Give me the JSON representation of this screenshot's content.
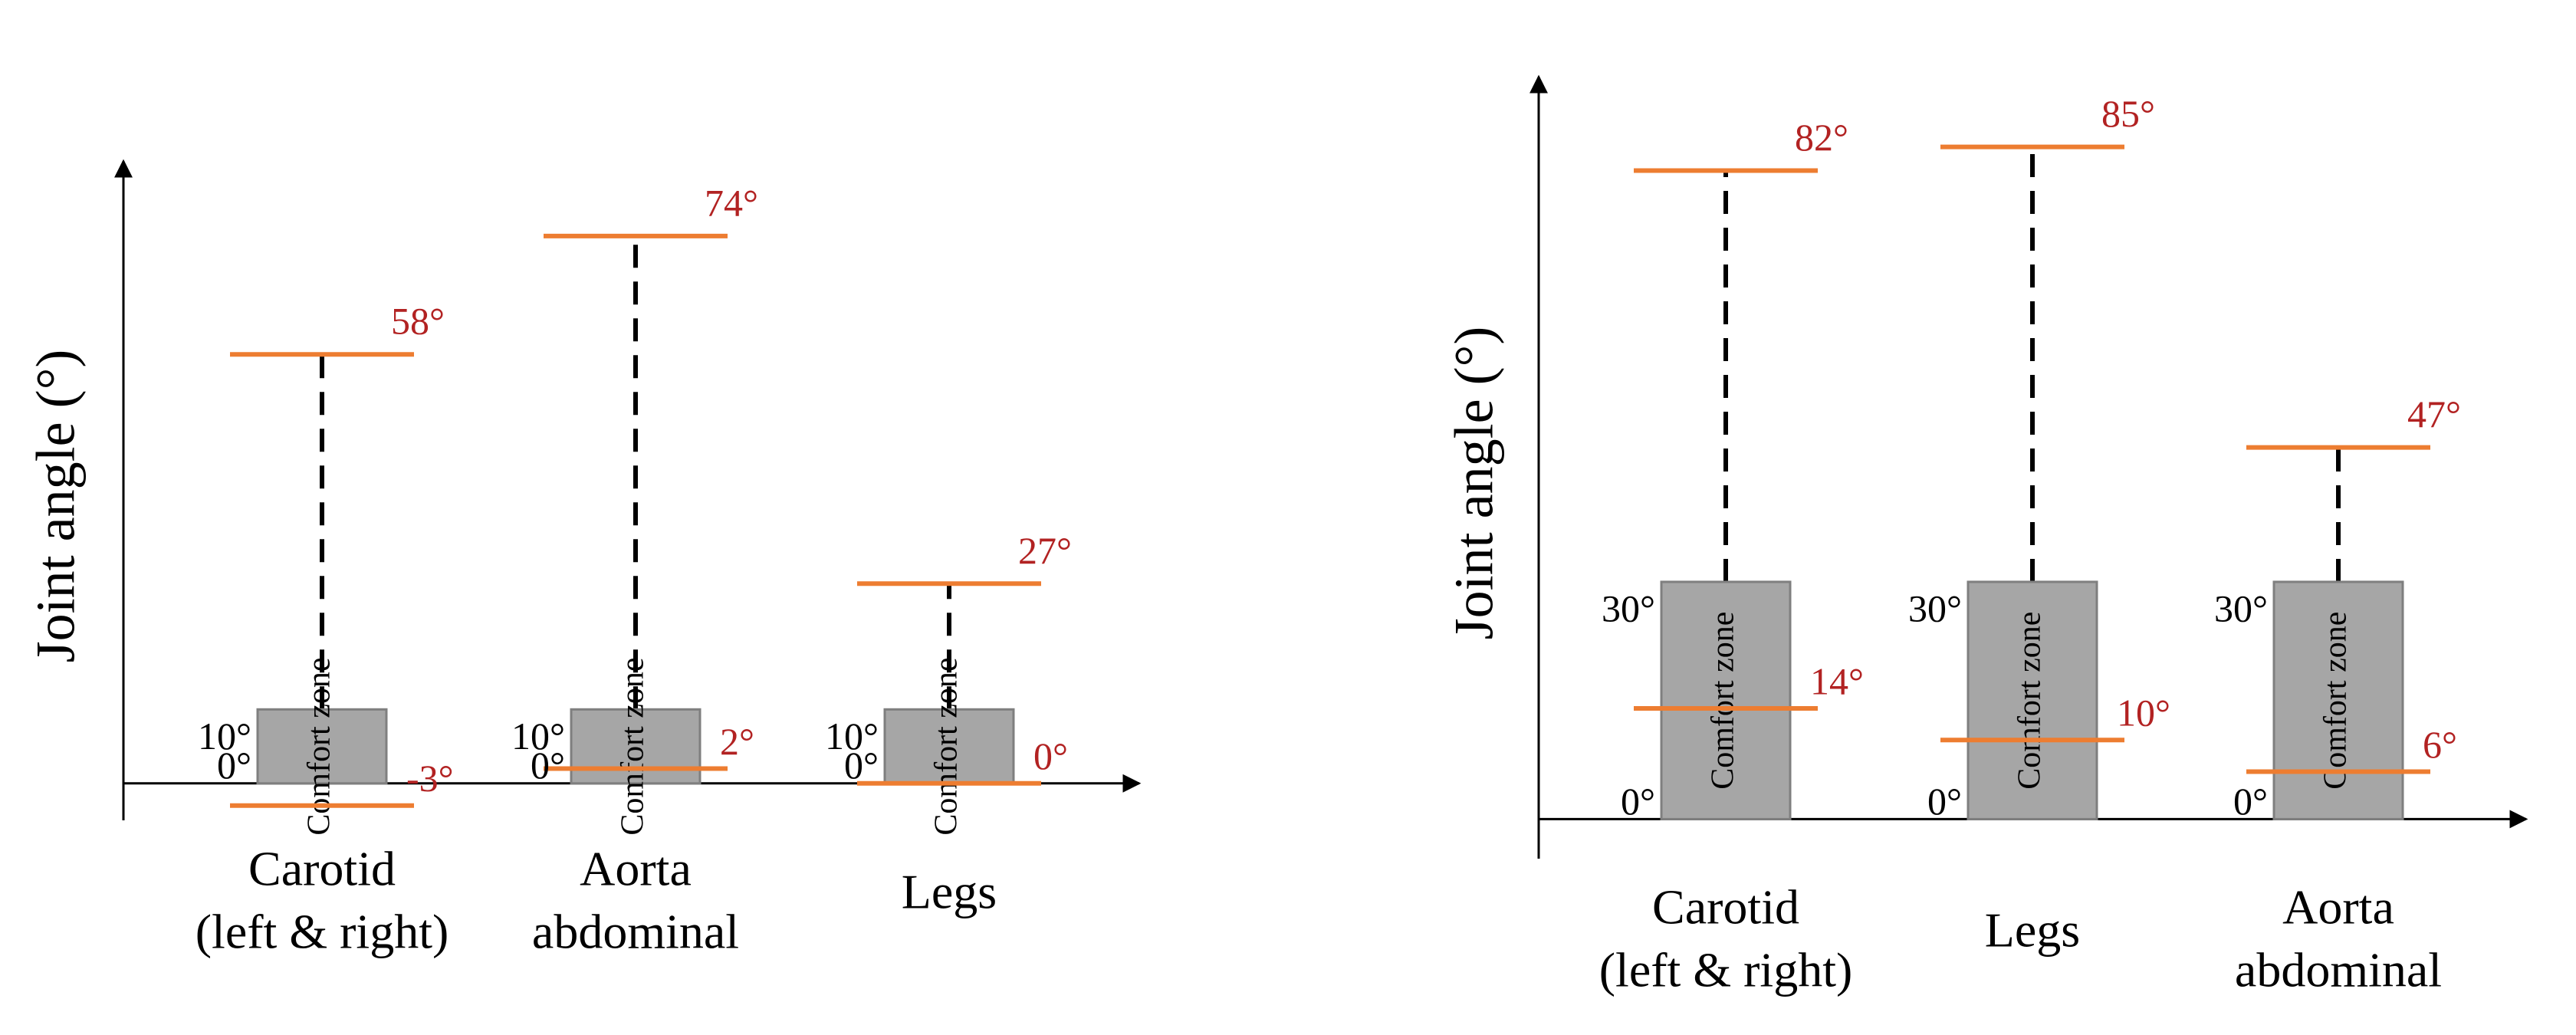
{
  "chart_data": [
    {
      "type": "range",
      "ylabel": "Joint angle (°)",
      "zone_label": "Comfort zone",
      "categories": [
        [
          "Carotid",
          "(left & right)"
        ],
        [
          "Aorta",
          "abdominal"
        ],
        [
          "Legs"
        ]
      ],
      "comfort_low": [
        0,
        0,
        0
      ],
      "comfort_low_labels": [
        "0°",
        "0°",
        "0°"
      ],
      "comfort_high": [
        10,
        10,
        10
      ],
      "comfort_high_labels": [
        "10°",
        "10°",
        "10°"
      ],
      "min": [
        -3,
        2,
        0
      ],
      "min_labels": [
        "-3°",
        "2°",
        "0°"
      ],
      "max": [
        58,
        74,
        27
      ],
      "max_labels": [
        "58°",
        "74°",
        "27°"
      ],
      "ylim": [
        -5,
        80
      ],
      "box_color": "#a6a6a6",
      "limit_color": "#ed7d31",
      "label_color": "#b22222"
    },
    {
      "type": "range",
      "ylabel": "Joint angle (°)",
      "zone_label": "Comfort zone",
      "categories": [
        [
          "Carotid",
          "(left & right)"
        ],
        [
          "Legs"
        ],
        [
          "Aorta",
          "abdominal"
        ]
      ],
      "comfort_low": [
        0,
        0,
        0
      ],
      "comfort_low_labels": [
        "0°",
        "0°",
        "0°"
      ],
      "comfort_high": [
        30,
        30,
        30
      ],
      "comfort_high_labels": [
        "30°",
        "30°",
        "30°"
      ],
      "min": [
        14,
        10,
        6
      ],
      "min_labels": [
        "14°",
        "10°",
        "6°"
      ],
      "max": [
        82,
        85,
        47
      ],
      "max_labels": [
        "82°",
        "85°",
        "47°"
      ],
      "ylim": [
        -5,
        90
      ],
      "box_color": "#a6a6a6",
      "limit_color": "#ed7d31",
      "label_color": "#b22222"
    }
  ]
}
